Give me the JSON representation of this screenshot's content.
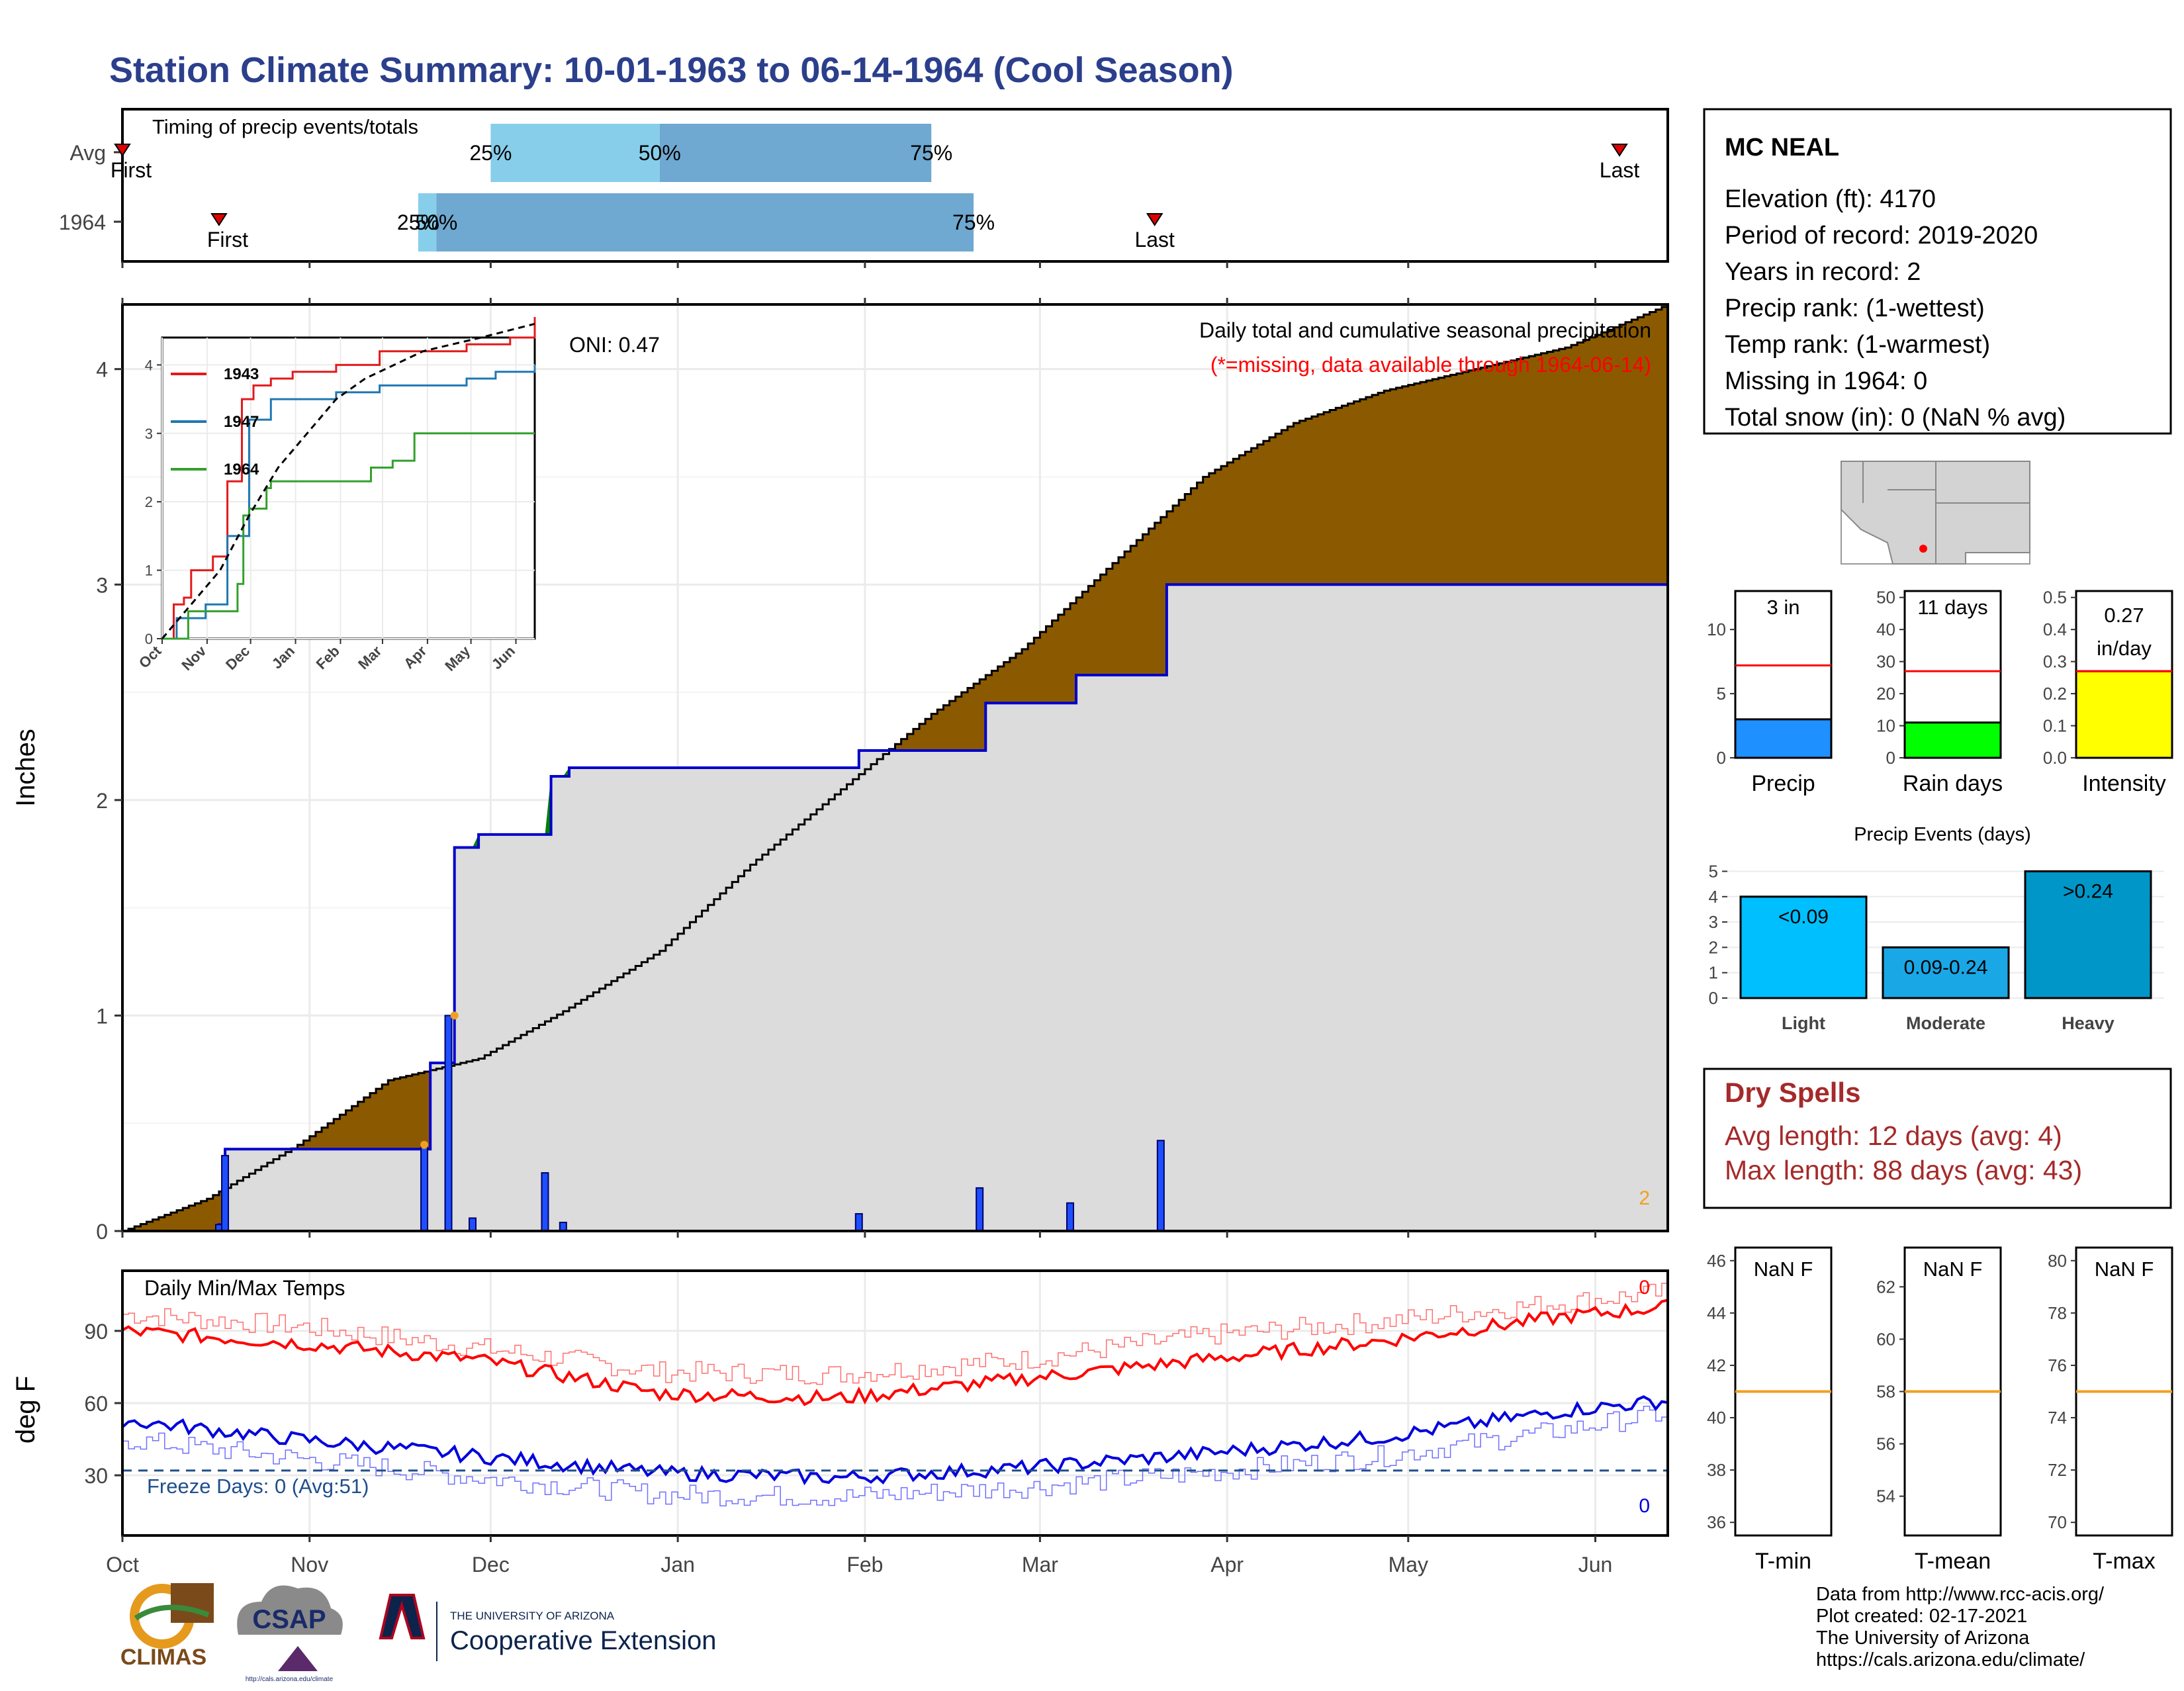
{
  "title": "Station Climate Summary: 10-01-1963 to 06-14-1964 (Cool Season)",
  "colors": {
    "title": "#2b3f8c",
    "above_avg": "#8b5a00",
    "below_avg": "#008000",
    "area": "#dcdcdc",
    "bar": "#1e4fff",
    "tmax": "#ff0000",
    "tmin": "#0000dd",
    "accent_red": "#ff0000",
    "dry": "#a52a2a"
  },
  "months": [
    "Oct",
    "Nov",
    "Dec",
    "Jan",
    "Feb",
    "Mar",
    "Apr",
    "May",
    "Jun"
  ],
  "timing_panel": {
    "label": "Timing of precip events/totals",
    "rows": [
      "Avg",
      "1964"
    ],
    "avg": {
      "first_label": "First",
      "first_day": 1,
      "last_label": "Last",
      "last_day": 249,
      "p25": 62,
      "p50": 90,
      "p75": 135,
      "p25_label": "25%",
      "p50_label": "50%",
      "p75_label": "75%"
    },
    "yr": {
      "first_label": "First",
      "first_day": 17,
      "last_label": "Last",
      "last_day": 172,
      "p25": 50,
      "p50": 53,
      "p75": 142,
      "p25_label": "25%",
      "p50_label": "50%",
      "p75_label": "75%"
    }
  },
  "chart_data": [
    {
      "type": "area",
      "title": "Daily total and cumulative seasonal precipitation",
      "subtitle": "(*=missing, data available through 1964-06-14)",
      "ylabel": "Inches",
      "ylim": [
        0,
        4.3
      ],
      "yticks": [
        0,
        1,
        2,
        3,
        4
      ],
      "oni_label": "ONI: 0.47",
      "corner_label": "2",
      "avg_cumulative": [
        [
          1,
          0.0
        ],
        [
          15,
          0.15
        ],
        [
          30,
          0.4
        ],
        [
          45,
          0.7
        ],
        [
          60,
          0.8
        ],
        [
          74,
          1.02
        ],
        [
          90,
          1.3
        ],
        [
          105,
          1.7
        ],
        [
          120,
          2.05
        ],
        [
          135,
          2.4
        ],
        [
          150,
          2.7
        ],
        [
          165,
          3.1
        ],
        [
          180,
          3.5
        ],
        [
          195,
          3.75
        ],
        [
          210,
          3.9
        ],
        [
          225,
          4.0
        ],
        [
          240,
          4.1
        ],
        [
          257,
          4.3
        ]
      ],
      "obs_cumulative": [
        [
          1,
          0
        ],
        [
          17,
          0.03
        ],
        [
          18,
          0.38
        ],
        [
          51,
          0.38
        ],
        [
          52,
          0.78
        ],
        [
          55,
          0.78
        ],
        [
          56,
          1.78
        ],
        [
          59,
          1.78
        ],
        [
          60,
          1.84
        ],
        [
          71,
          1.84
        ],
        [
          72,
          2.11
        ],
        [
          74,
          2.11
        ],
        [
          75,
          2.15
        ],
        [
          122,
          2.15
        ],
        [
          123,
          2.23
        ],
        [
          143,
          2.23
        ],
        [
          144,
          2.45
        ],
        [
          158,
          2.45
        ],
        [
          159,
          2.58
        ],
        [
          173,
          2.58
        ],
        [
          174,
          3.0
        ],
        [
          257,
          3.0
        ]
      ],
      "daily_bars": [
        [
          17,
          0.03
        ],
        [
          18,
          0.35
        ],
        [
          51,
          0.4
        ],
        [
          55,
          1.0
        ],
        [
          59,
          0.06
        ],
        [
          71,
          0.27
        ],
        [
          74,
          0.04
        ],
        [
          123,
          0.08
        ],
        [
          143,
          0.2
        ],
        [
          158,
          0.13
        ],
        [
          173,
          0.42
        ]
      ]
    },
    {
      "type": "line",
      "title": "Daily Min/Max Temps",
      "ylabel": "deg F",
      "ylim": [
        5,
        115
      ],
      "yticks": [
        30,
        60,
        90
      ],
      "freeze_line": 32,
      "freeze_label": "Freeze Days: 0 (Avg:51)",
      "tmax_obs_corner": "0",
      "tmin_obs_corner": "0",
      "tmax_avg": [
        [
          1,
          90
        ],
        [
          30,
          85
        ],
        [
          60,
          78
        ],
        [
          90,
          64
        ],
        [
          120,
          62
        ],
        [
          150,
          70
        ],
        [
          180,
          78
        ],
        [
          210,
          86
        ],
        [
          240,
          96
        ],
        [
          257,
          100
        ]
      ],
      "tmin_avg": [
        [
          1,
          53
        ],
        [
          30,
          45
        ],
        [
          60,
          38
        ],
        [
          90,
          31
        ],
        [
          120,
          29
        ],
        [
          150,
          33
        ],
        [
          180,
          39
        ],
        [
          210,
          46
        ],
        [
          240,
          57
        ],
        [
          257,
          61
        ]
      ],
      "tmax_rec": [
        [
          1,
          97
        ],
        [
          30,
          92
        ],
        [
          60,
          83
        ],
        [
          90,
          73
        ],
        [
          120,
          72
        ],
        [
          150,
          78
        ],
        [
          180,
          88
        ],
        [
          210,
          94
        ],
        [
          240,
          102
        ],
        [
          257,
          106
        ]
      ],
      "tmin_rec": [
        [
          1,
          45
        ],
        [
          30,
          37
        ],
        [
          60,
          29
        ],
        [
          90,
          22
        ],
        [
          120,
          21
        ],
        [
          150,
          25
        ],
        [
          180,
          31
        ],
        [
          210,
          38
        ],
        [
          240,
          49
        ],
        [
          257,
          56
        ]
      ]
    },
    {
      "type": "line",
      "title": "",
      "xlim": [
        "Oct",
        "Jun"
      ],
      "legend": [
        "1943",
        "1947",
        "1964"
      ],
      "legend_colors": [
        "#e31a1c",
        "#1f78b4",
        "#33a02c"
      ],
      "yticks": [
        0,
        1,
        2,
        3,
        4
      ],
      "ylim": [
        0,
        4.4
      ],
      "s1943": [
        [
          0,
          0
        ],
        [
          8,
          0.5
        ],
        [
          15,
          0.6
        ],
        [
          20,
          1.0
        ],
        [
          35,
          1.2
        ],
        [
          45,
          2.3
        ],
        [
          55,
          3.5
        ],
        [
          63,
          3.7
        ],
        [
          75,
          3.8
        ],
        [
          90,
          3.9
        ],
        [
          120,
          4.0
        ],
        [
          150,
          4.2
        ],
        [
          210,
          4.3
        ],
        [
          240,
          4.4
        ],
        [
          257,
          4.7
        ]
      ],
      "s1947": [
        [
          0,
          0
        ],
        [
          10,
          0.3
        ],
        [
          30,
          0.5
        ],
        [
          45,
          1.5
        ],
        [
          60,
          3.2
        ],
        [
          75,
          3.5
        ],
        [
          105,
          3.5
        ],
        [
          120,
          3.6
        ],
        [
          150,
          3.7
        ],
        [
          210,
          3.8
        ],
        [
          230,
          3.9
        ],
        [
          257,
          4.0
        ]
      ],
      "s1964": [
        [
          0,
          0
        ],
        [
          18,
          0.4
        ],
        [
          52,
          0.8
        ],
        [
          56,
          1.8
        ],
        [
          60,
          1.9
        ],
        [
          72,
          2.2
        ],
        [
          75,
          2.3
        ],
        [
          123,
          2.3
        ],
        [
          144,
          2.5
        ],
        [
          159,
          2.6
        ],
        [
          174,
          3.0
        ],
        [
          257,
          3.0
        ]
      ],
      "avg": [
        [
          0,
          0
        ],
        [
          20,
          0.5
        ],
        [
          40,
          1.0
        ],
        [
          60,
          1.8
        ],
        [
          80,
          2.5
        ],
        [
          100,
          3.0
        ],
        [
          120,
          3.5
        ],
        [
          140,
          3.8
        ],
        [
          160,
          4.0
        ],
        [
          180,
          4.2
        ],
        [
          200,
          4.3
        ],
        [
          220,
          4.4
        ],
        [
          257,
          4.6
        ]
      ]
    },
    {
      "type": "bar",
      "title": "",
      "categories": [
        "Precip"
      ],
      "values": [
        3
      ],
      "avg": 7.2,
      "ylim": [
        0,
        13
      ],
      "yticks": [
        0,
        5,
        10
      ],
      "label": "3 in",
      "color": "#1e90ff"
    },
    {
      "type": "bar",
      "title": "",
      "categories": [
        "Rain days"
      ],
      "values": [
        11
      ],
      "avg": 27,
      "ylim": [
        0,
        52
      ],
      "yticks": [
        0,
        10,
        20,
        30,
        40,
        50
      ],
      "label": "11 days",
      "color": "#00ff00"
    },
    {
      "type": "bar",
      "title": "",
      "categories": [
        "Intensity"
      ],
      "values": [
        0.27
      ],
      "avg": 0.27,
      "ylim": [
        0,
        0.52
      ],
      "yticks": [
        0.0,
        0.1,
        0.2,
        0.3,
        0.4,
        0.5
      ],
      "label_top": "0.27",
      "label_bot": "in/day",
      "color": "#ffff00"
    },
    {
      "type": "bar",
      "title": "Precip Events (days)",
      "categories": [
        "Light",
        "Moderate",
        "Heavy"
      ],
      "values": [
        4,
        2,
        5
      ],
      "labels": [
        "<0.09",
        "0.09-0.24",
        ">0.24"
      ],
      "colors": [
        "#00bfff",
        "#1aa7e6",
        "#0096c8"
      ],
      "ylim": [
        0,
        5.3
      ],
      "yticks": [
        0,
        1,
        2,
        3,
        4,
        5
      ]
    },
    {
      "type": "bar",
      "title": "",
      "categories": [
        "T-min"
      ],
      "avg": 41,
      "ylim": [
        35.5,
        46.5
      ],
      "yticks": [
        36,
        38,
        40,
        42,
        44,
        46
      ],
      "label": "NaN F"
    },
    {
      "type": "bar",
      "title": "",
      "categories": [
        "T-mean"
      ],
      "avg": 58,
      "ylim": [
        52.5,
        63.5
      ],
      "yticks": [
        54,
        56,
        58,
        60,
        62
      ],
      "label": "NaN F"
    },
    {
      "type": "bar",
      "title": "",
      "categories": [
        "T-max"
      ],
      "avg": 75,
      "ylim": [
        69.5,
        80.5
      ],
      "yticks": [
        70,
        72,
        74,
        76,
        78,
        80
      ],
      "label": "NaN F"
    }
  ],
  "station": {
    "name": "MC NEAL",
    "lines": [
      "Elevation (ft): 4170",
      "Period of record: 2019-2020",
      "Years in record: 2",
      "Precip rank:  (1-wettest)",
      "Temp rank:  (1-warmest)",
      "Missing in 1964: 0",
      "Total snow (in): 0 (NaN % avg)"
    ]
  },
  "dry_spells": {
    "title": "Dry Spells",
    "avg_line": "Avg length: 12 days (avg: 4)",
    "max_line": "Max length: 88 days (avg: 43)"
  },
  "footer": {
    "lines": [
      "Data from http://www.rcc-acis.org/",
      "Plot created: 02-17-2021",
      "The University of Arizona",
      "https://cals.arizona.edu/climate/"
    ],
    "logo_climas": "CLIMAS",
    "logo_csap": "CSAP",
    "logo_csap_url": "http://cals.arizona.edu/climate",
    "logo_ua_small": "THE UNIVERSITY OF ARIZONA",
    "logo_ua_big": "Cooperative Extension"
  }
}
